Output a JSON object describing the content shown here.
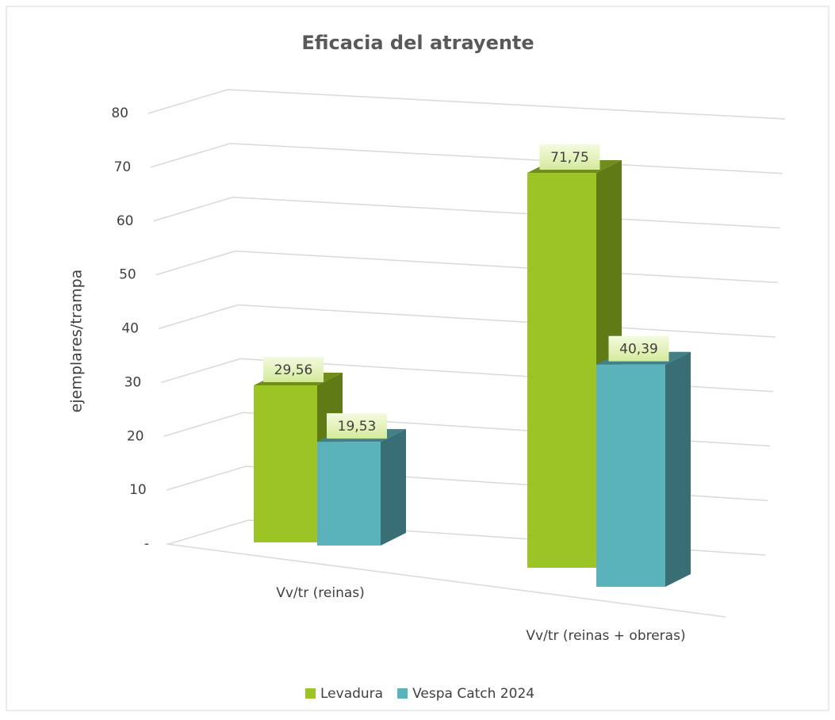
{
  "chart_data": {
    "type": "bar3d",
    "title": "Eficacia del atrayente",
    "y_label": "ejemplares/trampa",
    "categories": [
      "Vv/tr (reinas)",
      "Vv/tr (reinas + obreras)"
    ],
    "series": [
      {
        "name": "Levadura",
        "color": "#9bc424",
        "values": [
          29.56,
          71.75
        ],
        "value_labels": [
          "29,56",
          "71,75"
        ]
      },
      {
        "name": "Vespa Catch 2024",
        "color": "#5ab2bb",
        "values": [
          19.53,
          40.39
        ],
        "value_labels": [
          "19,53",
          "40,39"
        ]
      }
    ],
    "ylim": [
      0,
      80
    ],
    "yticks": [
      {
        "value": 0,
        "label": "-"
      },
      10,
      20,
      30,
      40,
      50,
      60,
      70,
      80
    ],
    "grid": true
  }
}
